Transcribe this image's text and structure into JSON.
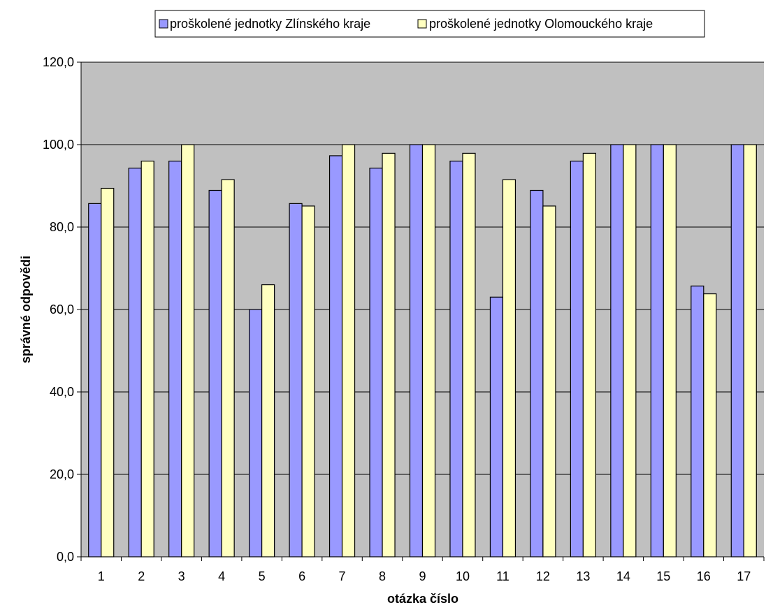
{
  "chart_data": {
    "type": "bar",
    "title": "",
    "xlabel": "otázka číslo",
    "ylabel": "správné odpovědi",
    "ylim": [
      0,
      120
    ],
    "yticks": [
      "0,0",
      "20,0",
      "40,0",
      "60,0",
      "80,0",
      "100,0",
      "120,0"
    ],
    "categories": [
      "1",
      "2",
      "3",
      "4",
      "5",
      "6",
      "7",
      "8",
      "9",
      "10",
      "11",
      "12",
      "13",
      "14",
      "15",
      "16",
      "17"
    ],
    "series": [
      {
        "name": "proškolené jednotky Zlínského kraje",
        "color": "#9999ff",
        "values": [
          85.7,
          94.3,
          96.0,
          88.9,
          60.0,
          85.7,
          97.3,
          94.3,
          100.0,
          96.0,
          63.0,
          88.9,
          96.0,
          100.0,
          100.0,
          65.7,
          100.0
        ]
      },
      {
        "name": "proškolené jednotky Olomouckého kraje",
        "color": "#ffffc0",
        "values": [
          89.4,
          96.0,
          100.0,
          91.5,
          66.0,
          85.1,
          100.0,
          97.9,
          100.0,
          97.9,
          91.5,
          85.1,
          97.9,
          100.0,
          100.0,
          63.8,
          100.0
        ]
      }
    ],
    "grid": true,
    "plot_background": "#c0c0c0",
    "legend_position": "top"
  }
}
